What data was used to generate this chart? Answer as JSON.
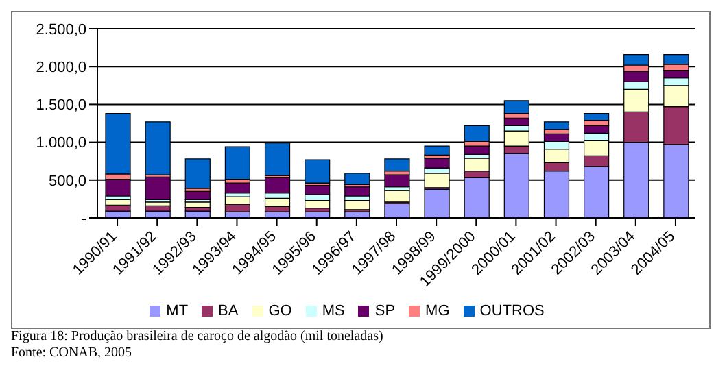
{
  "chart_data": {
    "type": "bar",
    "stacked": true,
    "categories": [
      "1990/91",
      "1991/92",
      "1992/93",
      "1993/94",
      "1994/95",
      "1995/96",
      "1996/97",
      "1997/98",
      "1998/99",
      "1999/2000",
      "2000/01",
      "2001/02",
      "2002/03",
      "2003/04",
      "2004/05"
    ],
    "series": [
      {
        "name": "MT",
        "color": "#9999ff",
        "values": [
          90,
          90,
          90,
          80,
          80,
          80,
          80,
          190,
          380,
          530,
          850,
          620,
          680,
          1000,
          970
        ]
      },
      {
        "name": "BA",
        "color": "#993366",
        "values": [
          80,
          70,
          50,
          100,
          70,
          50,
          30,
          20,
          20,
          90,
          100,
          110,
          140,
          400,
          500
        ]
      },
      {
        "name": "GO",
        "color": "#ffffcc",
        "values": [
          70,
          50,
          70,
          100,
          110,
          100,
          120,
          150,
          190,
          170,
          200,
          180,
          200,
          300,
          280
        ]
      },
      {
        "name": "MS",
        "color": "#ccffff",
        "values": [
          50,
          30,
          30,
          50,
          70,
          80,
          60,
          50,
          70,
          50,
          70,
          100,
          100,
          100,
          100
        ]
      },
      {
        "name": "SP",
        "color": "#660066",
        "values": [
          220,
          300,
          110,
          130,
          200,
          120,
          120,
          160,
          130,
          110,
          100,
          100,
          100,
          140,
          100
        ]
      },
      {
        "name": "MG",
        "color": "#ff8080",
        "values": [
          70,
          30,
          40,
          50,
          30,
          30,
          30,
          50,
          40,
          60,
          60,
          60,
          70,
          80,
          80
        ]
      },
      {
        "name": "OUTROS",
        "color": "#0066cc",
        "values": [
          800,
          700,
          390,
          430,
          430,
          310,
          150,
          160,
          120,
          210,
          170,
          100,
          90,
          140,
          130
        ]
      }
    ],
    "ylim": [
      0,
      2500
    ],
    "yticks": [
      {
        "value": 0,
        "label": "-"
      },
      {
        "value": 500,
        "label": "500,0"
      },
      {
        "value": 1000,
        "label": "1.000,0"
      },
      {
        "value": 1500,
        "label": "1.500,0"
      },
      {
        "value": 2000,
        "label": "2.000,0"
      },
      {
        "value": 2500,
        "label": "2.500,0"
      }
    ],
    "grid": "y",
    "legend": "bottom",
    "annotations": [
      "Figura 18: Produção brasileira de caroço de algodão (mil toneladas)",
      "Fonte: CONAB, 2005"
    ]
  }
}
